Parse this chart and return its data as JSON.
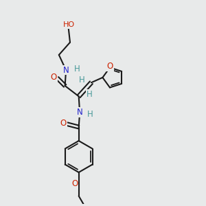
{
  "bg_color": "#e8eaea",
  "bond_color": "#1a1a1a",
  "bond_width": 1.5,
  "atom_colors": {
    "H": "#4a9a9a",
    "O": "#cc2200",
    "N": "#2222cc",
    "C": "#1a1a1a"
  },
  "font_size": 8.5
}
